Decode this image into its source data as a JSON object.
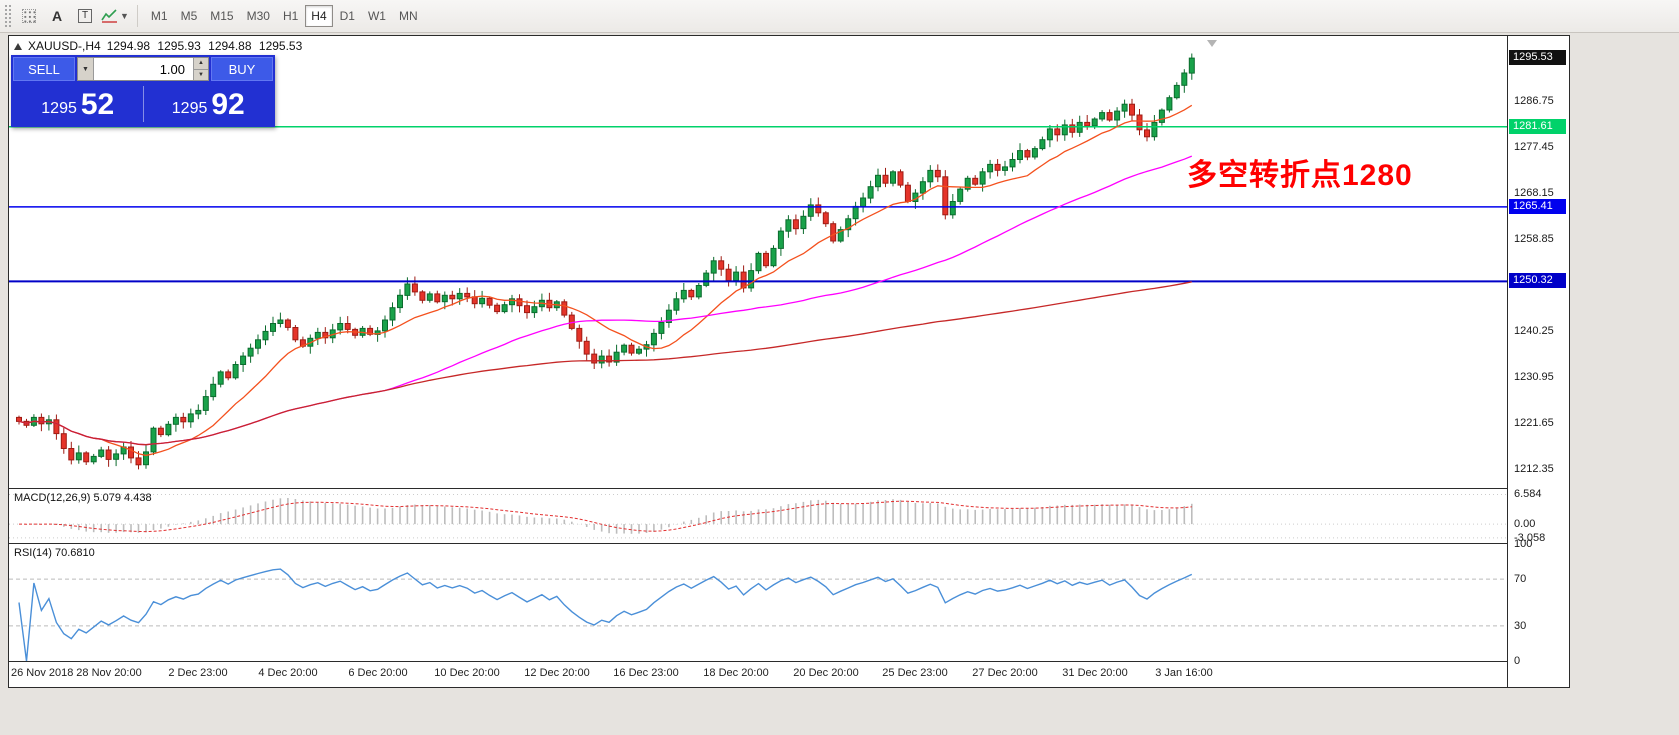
{
  "toolbar": {
    "tool_a": "A",
    "tool_t": "T",
    "timeframes": [
      "M1",
      "M5",
      "M15",
      "M30",
      "H1",
      "H4",
      "D1",
      "W1",
      "MN"
    ],
    "active_timeframe": "H4"
  },
  "chart_header": {
    "symbol_timeframe": "XAUUSD-,H4",
    "open": "1294.98",
    "high": "1295.93",
    "low": "1294.88",
    "close": "1295.53"
  },
  "trade_panel": {
    "sell_label": "SELL",
    "buy_label": "BUY",
    "volume": "1.00",
    "sell_price_main": "1295",
    "sell_price_pips": "52",
    "buy_price_main": "1295",
    "buy_price_pips": "92"
  },
  "annotation": {
    "text": "多空转折点1280",
    "color": "#ff0000"
  },
  "price_axis": {
    "current_label": "1295.53"
  },
  "indicators": {
    "macd_label": "MACD(12,26,9) 5.079 4.438",
    "rsi_label": "RSI(14) 70.6810"
  },
  "colors": {
    "up": "#19a24a",
    "up_border": "#0b6b2d",
    "down": "#e5342a",
    "down_border": "#9e1c14",
    "current_label_bg": "#111111",
    "macd_histogram": "#bdbdbd",
    "macd_signal": "#e23030",
    "rsi_line": "#4a8fd8"
  },
  "chart_data": {
    "type": "candlestick",
    "symbol": "XAUUSD-",
    "timeframe": "H4",
    "current": {
      "open": 1294.98,
      "high": 1295.93,
      "low": 1294.88,
      "close": 1295.53
    },
    "current_price": 1295.53,
    "first_open": 1222.8,
    "y_range": [
      1208.5,
      1300.0
    ],
    "grid_step": 9.3,
    "price_ticks": [
      1286.75,
      1277.45,
      1268.15,
      1258.85,
      1240.25,
      1230.95,
      1221.65,
      1212.35
    ],
    "hlines": [
      {
        "price": 1281.61,
        "label": "1281.61",
        "color": "#00d26a",
        "width": 1.5
      },
      {
        "price": 1265.41,
        "label": "1265.41",
        "color": "#0000ee",
        "width": 1.5
      },
      {
        "price": 1250.32,
        "label": "1250.32",
        "color": "#0000c8",
        "width": 2
      }
    ],
    "moving_averages": [
      {
        "period": 12,
        "color": "#f4511e"
      },
      {
        "period": 50,
        "color": "#ff00ff"
      },
      {
        "period": 1000,
        "color": "#c62828"
      }
    ],
    "closes": [
      1222.0,
      1221.2,
      1222.8,
      1221.5,
      1222.3,
      1219.5,
      1216.5,
      1214.2,
      1215.6,
      1213.8,
      1214.9,
      1216.2,
      1214.3,
      1215.4,
      1216.8,
      1214.6,
      1213.2,
      1215.8,
      1220.6,
      1219.3,
      1221.4,
      1222.8,
      1221.9,
      1223.5,
      1224.2,
      1227.0,
      1229.5,
      1232.0,
      1230.8,
      1233.5,
      1235.2,
      1236.8,
      1238.5,
      1240.2,
      1241.8,
      1242.5,
      1241.0,
      1238.5,
      1237.2,
      1238.8,
      1240.0,
      1238.9,
      1240.5,
      1241.8,
      1240.6,
      1239.4,
      1240.8,
      1239.6,
      1240.3,
      1242.5,
      1245.0,
      1247.5,
      1249.8,
      1248.2,
      1246.5,
      1247.8,
      1246.2,
      1247.5,
      1246.8,
      1247.9,
      1247.2,
      1245.8,
      1246.9,
      1245.5,
      1244.2,
      1245.6,
      1246.8,
      1245.4,
      1244.0,
      1245.2,
      1246.5,
      1245.0,
      1246.2,
      1243.5,
      1240.8,
      1238.2,
      1235.6,
      1233.8,
      1235.2,
      1234.0,
      1236.0,
      1237.4,
      1235.8,
      1236.6,
      1237.5,
      1239.8,
      1242.0,
      1244.5,
      1246.8,
      1248.5,
      1247.2,
      1249.5,
      1252.0,
      1254.5,
      1252.8,
      1250.5,
      1252.2,
      1249.0,
      1252.5,
      1256.0,
      1253.5,
      1257.0,
      1260.5,
      1262.8,
      1261.0,
      1263.5,
      1265.8,
      1264.2,
      1262.0,
      1258.5,
      1260.8,
      1263.0,
      1265.5,
      1267.2,
      1269.5,
      1271.8,
      1270.2,
      1272.5,
      1269.8,
      1266.5,
      1268.2,
      1270.5,
      1272.8,
      1271.5,
      1263.8,
      1266.5,
      1269.0,
      1271.2,
      1270.0,
      1272.5,
      1274.0,
      1272.8,
      1273.5,
      1275.0,
      1276.8,
      1275.5,
      1277.2,
      1279.0,
      1281.2,
      1280.0,
      1282.0,
      1280.5,
      1282.5,
      1281.8,
      1283.2,
      1284.5,
      1283.0,
      1284.8,
      1286.2,
      1284.0,
      1281.0,
      1279.6,
      1282.5,
      1285.0,
      1287.5,
      1290.0,
      1292.5,
      1295.53
    ],
    "bars_per_label": 12,
    "time_labels": [
      "26 Nov 2018",
      "28 Nov 20:00",
      "2 Dec 23:00",
      "4 Dec 20:00",
      "6 Dec 20:00",
      "10 Dec 20:00",
      "12 Dec 20:00",
      "16 Dec 23:00",
      "18 Dec 20:00",
      "20 Dec 20:00",
      "25 Dec 23:00",
      "27 Dec 20:00",
      "31 Dec 20:00",
      "3 Jan 16:00"
    ],
    "macd": {
      "params": [
        12,
        26,
        9
      ],
      "values_label": "5.079 4.438",
      "range": [
        -4.2,
        7.8
      ],
      "axis_ticks": [
        {
          "v": 6.584,
          "label": "6.584"
        },
        {
          "v": 0,
          "label": "0.00"
        },
        {
          "v": -3.058,
          "label": "-3.058"
        }
      ]
    },
    "rsi": {
      "period": 14,
      "value": 70.681,
      "range": [
        0,
        100
      ],
      "levels": [
        70,
        30
      ],
      "axis_ticks": [
        100,
        70,
        30,
        0
      ]
    }
  }
}
